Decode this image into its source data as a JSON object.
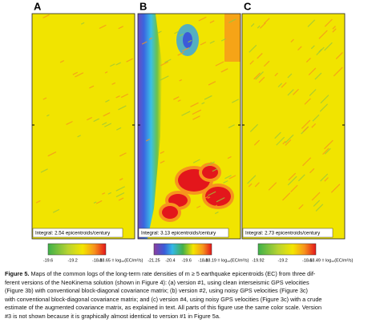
{
  "panels": [
    {
      "label": "A",
      "integral": "Integral: 2.54 epicentroids/century",
      "ticks": [
        "-19.6",
        "-19.2",
        "-18.8"
      ],
      "max": "-18.65 = log₁₀(EC/m²/s)"
    },
    {
      "label": "B",
      "integral": "Integral: 3.13 epicentroids/century",
      "ticks": [
        "-21.25",
        "-20.4",
        "-19.6",
        "-18.8"
      ],
      "max": "-18.19 = log₁₀(EC/m²/s)"
    },
    {
      "label": "C",
      "integral": "Integral: 2.73 epicentroids/century",
      "ticks": [
        "-19.92",
        "-19.2",
        "-18.6"
      ],
      "max": "-18.49 = log₁₀(EC/m²/s)"
    }
  ],
  "caption": {
    "label": "Figure 5.",
    "lines": [
      "Maps of the common logs of the long-term rate densities of m ≥ 5 earthquake epicentroids (EC) from three dif-",
      "ferent versions of the NeoKinema solution (shown in Figure 4): (a) version #1, using clean interseismic GPS velocities",
      "(Figure 3b) with conventional block-diagonal covariance matrix; (b) version #2, using noisy GPS velocities (Figure 3c)",
      "with conventional block-diagonal covariance matrix; and (c) version #4, using noisy GPS velocities (Figure 3c) with a crude",
      "estimate of the augmented covariance matrix, as explained in text. All parts of this figure use the same color scale. Version",
      "#3 is not shown because it is graphically almost identical to version #1 in Figure 5a."
    ]
  }
}
